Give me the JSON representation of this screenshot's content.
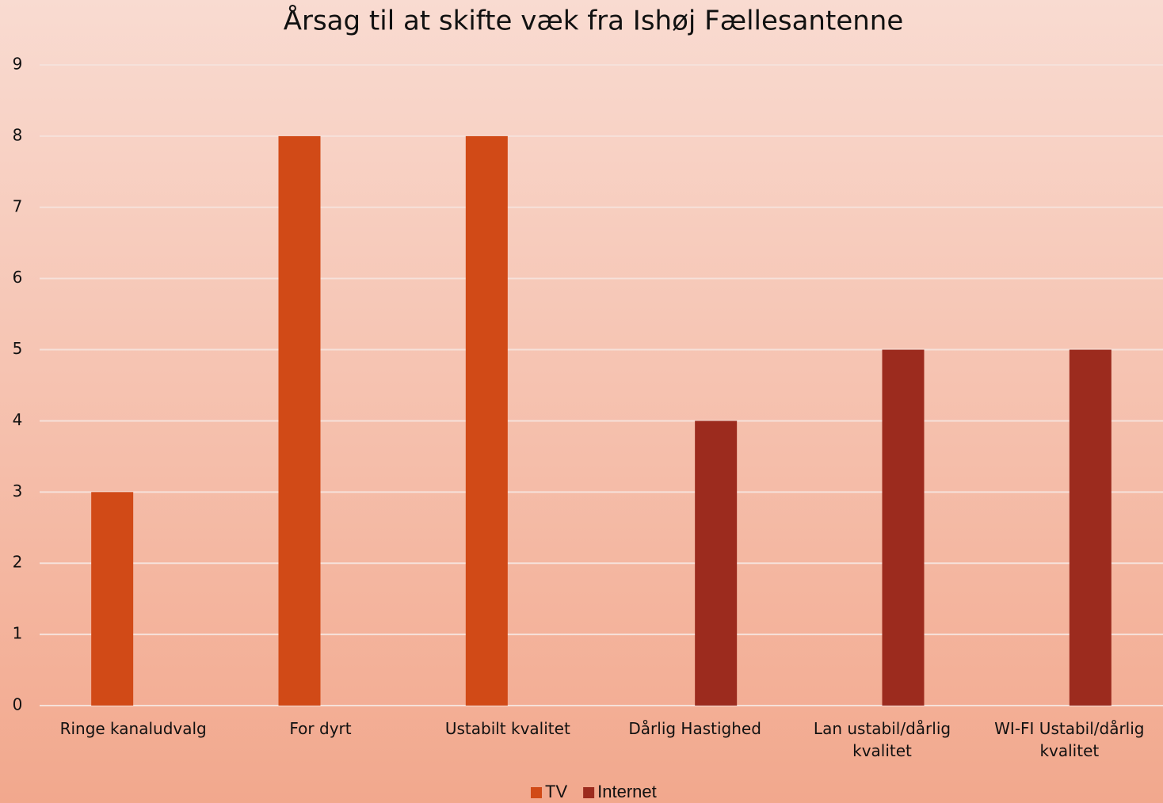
{
  "chart_data": {
    "type": "bar",
    "title": "Årsag til at skifte væk fra Ishøj Fællesantenne",
    "categories": [
      "Ringe kanaludvalg",
      "For dyrt",
      "Ustabilt kvalitet",
      "Dårlig Hastighed",
      "Lan ustabil/dårlig kvalitet",
      "WI-FI Ustabil/dårlig kvalitet"
    ],
    "series": [
      {
        "name": "TV",
        "color": "#d14a17",
        "values": [
          3,
          8,
          8,
          null,
          null,
          null
        ]
      },
      {
        "name": "Internet",
        "color": "#9c2b1e",
        "values": [
          null,
          null,
          null,
          4,
          5,
          5
        ]
      }
    ],
    "ylim": [
      0,
      9
    ],
    "yticks": [
      0,
      1,
      2,
      3,
      4,
      5,
      6,
      7,
      8,
      9
    ],
    "grid": true,
    "legend": "bottom"
  }
}
